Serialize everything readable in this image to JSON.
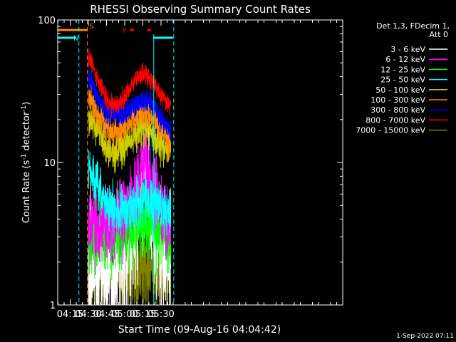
{
  "chart_data": {
    "type": "line",
    "title": "RHESSI Observing Summary Count Rates",
    "xlabel": "Start Time (09-Aug-16 04:04:42)",
    "ylabel": "Count Rate (s⁻¹ detector⁻¹)",
    "ylabel_parts": [
      "Count Rate (s",
      "-1",
      " detector",
      "-1",
      ")"
    ],
    "yscale": "log",
    "ylim": [
      1,
      100
    ],
    "xlim_min": [
      244.7,
      480
    ],
    "x_tick_labels": [
      "04:15",
      "04:30",
      "04:45",
      "05:00",
      "05:15",
      "05:30"
    ],
    "x_tick_values_min": [
      255,
      270,
      285,
      300,
      315,
      330
    ],
    "y_tick_labels": [
      "1",
      "10",
      "100"
    ],
    "y_tick_values": [
      1,
      10,
      100
    ],
    "legend_header": [
      "Det 1,3, FDecim 1,",
      "Att 0"
    ],
    "legend_position": "right",
    "series": [
      {
        "name": "3 - 6 keV",
        "color": "#ffffff",
        "kind": "noisy",
        "pts": [
          [
            270,
            2.0
          ],
          [
            285,
            1.6
          ],
          [
            300,
            2.0
          ],
          [
            310,
            3.5
          ],
          [
            315,
            6.5
          ],
          [
            318,
            9.0
          ],
          [
            322,
            4.5
          ],
          [
            330,
            2.2
          ],
          [
            338,
            1.8
          ]
        ],
        "noise": 0.45,
        "floor": 1.0
      },
      {
        "name": "6 - 12 keV",
        "color": "#ff00ff",
        "kind": "noisy",
        "pts": [
          [
            270,
            3.8
          ],
          [
            285,
            3.6
          ],
          [
            300,
            4.2
          ],
          [
            308,
            6.0
          ],
          [
            315,
            9.5
          ],
          [
            318,
            11.0
          ],
          [
            322,
            7.0
          ],
          [
            330,
            4.5
          ],
          [
            338,
            3.8
          ]
        ],
        "noise": 0.25,
        "floor": 1.6
      },
      {
        "name": "12 - 25 keV",
        "color": "#00ff00",
        "kind": "noisy",
        "pts": [
          [
            270,
            3.0
          ],
          [
            285,
            3.1
          ],
          [
            300,
            3.4
          ],
          [
            310,
            3.8
          ],
          [
            318,
            4.2
          ],
          [
            325,
            3.6
          ],
          [
            338,
            2.9
          ]
        ],
        "noise": 0.25,
        "floor": 1.5
      },
      {
        "name": "25 - 50 keV",
        "color": "#00ffff",
        "kind": "noisy",
        "pts": [
          [
            270,
            9.0
          ],
          [
            280,
            6.0
          ],
          [
            290,
            4.6
          ],
          [
            300,
            4.6
          ],
          [
            310,
            5.2
          ],
          [
            318,
            5.6
          ],
          [
            328,
            5.0
          ],
          [
            338,
            4.6
          ]
        ],
        "noise": 0.16,
        "floor": 2.0
      },
      {
        "name": "50 - 100 keV",
        "color": "#cccc00",
        "kind": "noisy",
        "pts": [
          [
            270,
            22
          ],
          [
            278,
            16
          ],
          [
            285,
            12.5
          ],
          [
            292,
            12.0
          ],
          [
            300,
            13.0
          ],
          [
            310,
            16
          ],
          [
            318,
            18
          ],
          [
            325,
            15
          ],
          [
            332,
            12.5
          ],
          [
            338,
            11.5
          ]
        ],
        "noise": 0.12,
        "floor": 5
      },
      {
        "name": "100 - 300 keV",
        "color": "#ff8800",
        "kind": "noisy",
        "pts": [
          [
            270,
            30
          ],
          [
            278,
            22
          ],
          [
            285,
            17
          ],
          [
            292,
            16
          ],
          [
            300,
            17.5
          ],
          [
            310,
            22
          ],
          [
            318,
            23
          ],
          [
            325,
            20
          ],
          [
            332,
            16
          ],
          [
            338,
            14
          ]
        ],
        "noise": 0.1,
        "floor": 7
      },
      {
        "name": "300 - 800 keV",
        "color": "#0000ff",
        "kind": "noisy",
        "pts": [
          [
            270,
            40
          ],
          [
            278,
            29
          ],
          [
            285,
            22
          ],
          [
            292,
            21.5
          ],
          [
            300,
            22.5
          ],
          [
            310,
            26
          ],
          [
            318,
            27
          ],
          [
            325,
            24
          ],
          [
            332,
            19.5
          ],
          [
            338,
            17
          ]
        ],
        "noise": 0.08,
        "floor": 10
      },
      {
        "name": "800 - 7000 keV",
        "color": "#ff0000",
        "kind": "noisy",
        "pts": [
          [
            270,
            55
          ],
          [
            278,
            38
          ],
          [
            285,
            28
          ],
          [
            292,
            25
          ],
          [
            300,
            28
          ],
          [
            308,
            38
          ],
          [
            315,
            42
          ],
          [
            320,
            40
          ],
          [
            328,
            32
          ],
          [
            335,
            26
          ],
          [
            338,
            24
          ]
        ],
        "noise": 0.07,
        "floor": 12
      },
      {
        "name": "7000 - 15000 keV",
        "color": "#808000",
        "kind": "noisy",
        "pts": [
          [
            270,
            1.8
          ],
          [
            285,
            1.75
          ],
          [
            300,
            1.8
          ],
          [
            315,
            1.9
          ],
          [
            338,
            1.8
          ]
        ],
        "noise": 0.3,
        "floor": 1.0
      }
    ],
    "flags": [
      {
        "label": "S",
        "color": "#ff8800",
        "value": 85,
        "x_min": [
          244.7,
          269.2
        ],
        "line_min": 269.2
      },
      {
        "label": "N",
        "color": "#00ffff",
        "value": 75,
        "x_min": [
          244.7,
          260.0
        ],
        "line_min": 262.2,
        "x2_min": [
          323.5,
          340.0
        ],
        "line2_min": 340.5
      },
      {
        "label": "F",
        "color": "#ff0000",
        "value": 85,
        "x_min": [
          304.2,
          307.5
        ]
      }
    ],
    "extra_marks": [
      {
        "color": "#ff0000",
        "value": 85,
        "x_min": [
          318.6,
          321.8
        ]
      }
    ],
    "cyan_solid_line_min": 324.0
  },
  "timestamp": "1-Sep-2022 07:11"
}
